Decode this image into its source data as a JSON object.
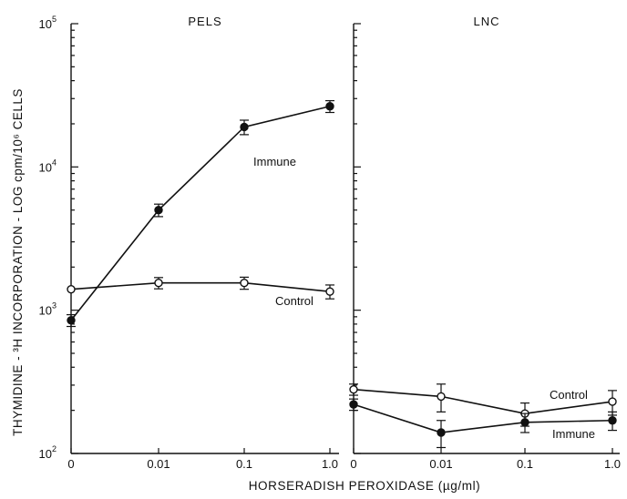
{
  "chart_data": {
    "type": "line",
    "ylabel": "THYMIDINE - ³H  INCORPORATION - LOG  cpm/10⁶  CELLS",
    "xlabel": "HORSERADISH  PEROXIDASE  (µg/ml)",
    "y_scale": "log",
    "ylim": [
      100,
      100000
    ],
    "y_ticks": [
      {
        "value": 100,
        "base": "10",
        "exp": "2"
      },
      {
        "value": 1000,
        "base": "10",
        "exp": "3"
      },
      {
        "value": 10000,
        "base": "10",
        "exp": "4"
      },
      {
        "value": 100000,
        "base": "10",
        "exp": "5"
      }
    ],
    "x": [
      "0",
      "0.01",
      "0.1",
      "1.0"
    ],
    "panels": [
      {
        "title": "PELS",
        "series": [
          {
            "name": "Immune",
            "marker": "filled",
            "values": [
              850,
              5000,
              19000,
              26500
            ],
            "err": [
              80,
              500,
              2200,
              2500
            ]
          },
          {
            "name": "Control",
            "marker": "open",
            "values": [
              1400,
              1550,
              1550,
              1350
            ],
            "err": [
              0,
              140,
              150,
              150
            ]
          }
        ]
      },
      {
        "title": "LNC",
        "series": [
          {
            "name": "Control",
            "marker": "open",
            "values": [
              280,
              250,
              190,
              230
            ],
            "err": [
              25,
              55,
              35,
              45
            ]
          },
          {
            "name": "Immune",
            "marker": "filled",
            "values": [
              220,
              140,
              165,
              170
            ],
            "err": [
              20,
              30,
              25,
              25
            ]
          }
        ]
      }
    ]
  }
}
